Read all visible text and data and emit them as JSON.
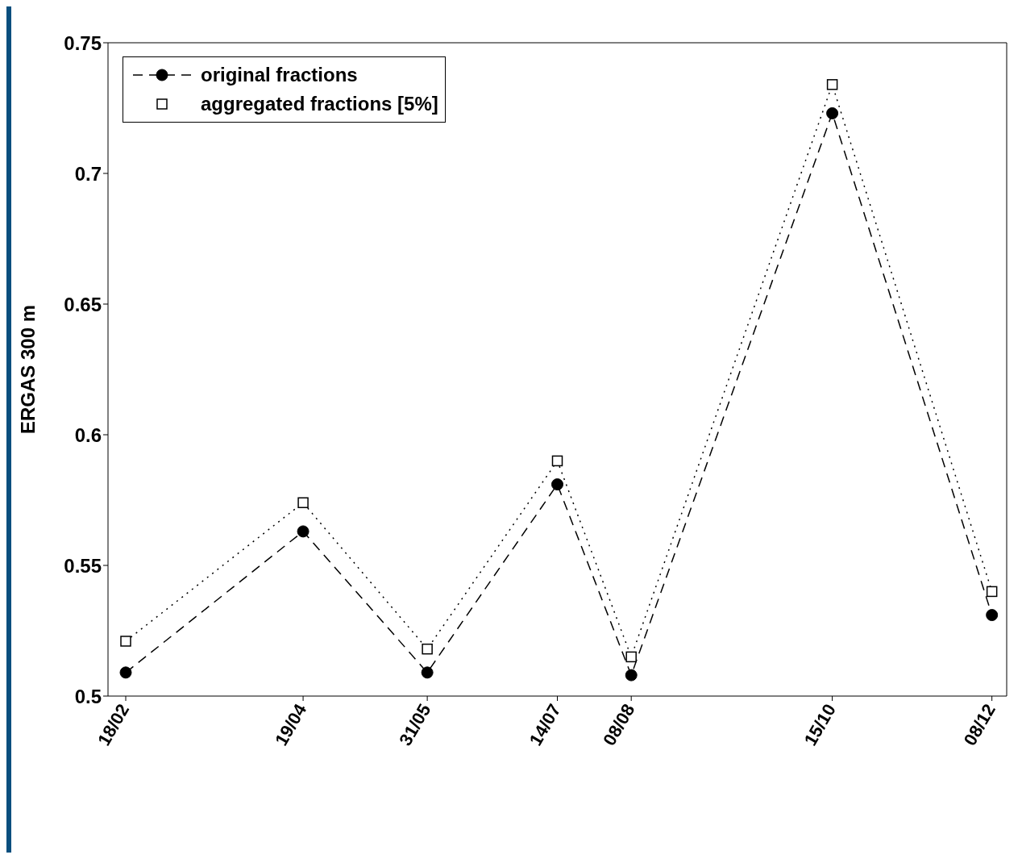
{
  "chart_data": {
    "type": "line",
    "ylabel": "ERGAS 300 m",
    "x": [
      "--02-18",
      "--04-19",
      "--05-31",
      "--07-14",
      "--08-08",
      "--10-15",
      "--12-08"
    ],
    "series": [
      {
        "name": "original fractions",
        "color": "#000000",
        "line_style": "dashed",
        "marker": "circle",
        "values": [
          0.509,
          0.563,
          0.509,
          0.581,
          0.508,
          0.723,
          0.531
        ]
      },
      {
        "name": "aggregated fractions [5%]",
        "color": "#000000",
        "line_style": "dotted",
        "marker": "square",
        "values": [
          0.521,
          0.574,
          0.518,
          0.59,
          0.515,
          0.734,
          0.54
        ]
      }
    ],
    "xlim": [
      "--02-12",
      "--12-13"
    ],
    "xticks": [
      {
        "value": "--02-18",
        "label": "18/02"
      },
      {
        "value": "--04-19",
        "label": "19/04"
      },
      {
        "value": "--05-31",
        "label": "31/05"
      },
      {
        "value": "--07-14",
        "label": "14/07"
      },
      {
        "value": "--08-08",
        "label": "08/08"
      },
      {
        "value": "--10-15",
        "label": "15/10"
      },
      {
        "value": "--12-08",
        "label": "08/12"
      }
    ],
    "ylim": [
      0.5,
      0.75
    ],
    "yticks": [
      0.5,
      0.55,
      0.6,
      0.65,
      0.7,
      0.75
    ],
    "grid": false,
    "legend": "top left"
  }
}
